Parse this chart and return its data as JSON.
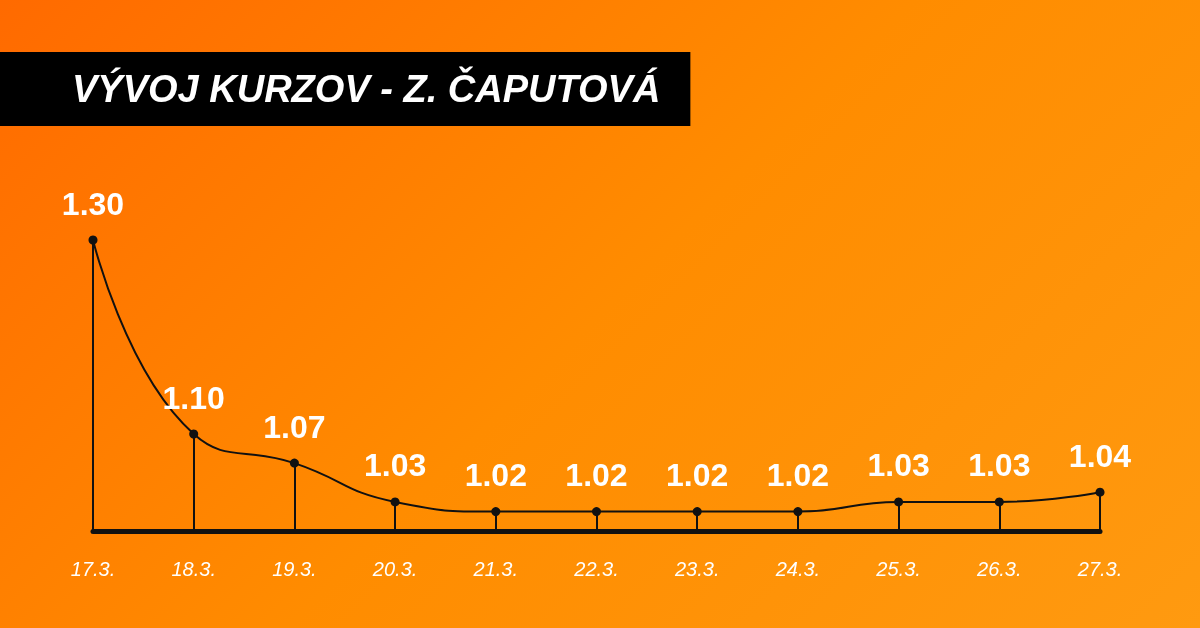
{
  "chart_data": {
    "type": "line",
    "title": "VÝVOJ KURZOV - Z. ČAPUTOVÁ",
    "categories": [
      "17.3.",
      "18.3.",
      "19.3.",
      "20.3.",
      "21.3.",
      "22.3.",
      "23.3.",
      "24.3.",
      "25.3.",
      "26.3.",
      "27.3."
    ],
    "values": [
      1.3,
      1.1,
      1.07,
      1.03,
      1.02,
      1.02,
      1.02,
      1.02,
      1.03,
      1.03,
      1.04
    ],
    "value_labels": [
      "1.30",
      "1.10",
      "1.07",
      "1.03",
      "1.02",
      "1.02",
      "1.02",
      "1.02",
      "1.03",
      "1.03",
      "1.04"
    ],
    "color": "#111111",
    "marker": "circle"
  }
}
